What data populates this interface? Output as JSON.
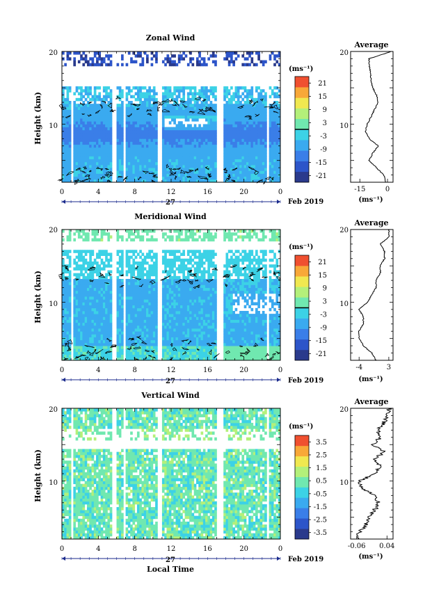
{
  "figure": {
    "x_label": "Local Time",
    "date_label": "Feb 2019",
    "day_label": "27",
    "y_label": "Height (km)",
    "avg_title": "Average",
    "colorbar_unit": "(ms⁻¹)",
    "avg_unit": "(ms⁻¹)"
  },
  "chart_data": [
    {
      "type": "heatmap",
      "title": "Zonal Wind",
      "xlabel": "",
      "ylabel": "Height (km)",
      "xlim": [
        0,
        24
      ],
      "x_ticks": [
        "0",
        "4",
        "8",
        "12",
        "16",
        "20",
        "0"
      ],
      "ylim": [
        2,
        20
      ],
      "y_ticks": [
        "10",
        "20"
      ],
      "colorbar": {
        "range": [
          -24,
          24
        ],
        "ticks": [
          "21",
          "15",
          "9",
          "3",
          "-3",
          "-9",
          "-15",
          "-21"
        ],
        "zero_line": 0
      },
      "gaps_hours": [
        [
          1.0,
          1.3
        ],
        [
          5.6,
          5.9
        ],
        [
          6.8,
          7.1
        ],
        [
          10.6,
          10.9
        ],
        [
          16.9,
          17.8
        ],
        [
          22.5,
          22.7
        ]
      ],
      "profile_height": [
        2,
        3,
        4,
        5,
        6,
        7,
        8,
        9,
        10,
        11,
        12,
        13,
        14,
        15,
        16,
        17,
        18,
        19,
        20
      ],
      "profile_values": [
        -1,
        -2,
        -6,
        -10,
        -8,
        -5,
        -10,
        -12,
        -11,
        -9,
        -7,
        -5,
        -6,
        -8,
        -9,
        -9,
        -10,
        -10,
        2
      ]
    },
    {
      "type": "heatmap",
      "title": "Meridional Wind",
      "xlabel": "",
      "ylabel": "Height (km)",
      "xlim": [
        0,
        24
      ],
      "x_ticks": [
        "0",
        "4",
        "8",
        "12",
        "16",
        "20",
        "0"
      ],
      "ylim": [
        2,
        20
      ],
      "y_ticks": [
        "10",
        "20"
      ],
      "colorbar": {
        "range": [
          -24,
          24
        ],
        "ticks": [
          "21",
          "15",
          "9",
          "3",
          "-3",
          "-9",
          "-15",
          "-21"
        ],
        "zero_line": 0
      },
      "gaps_hours": [
        [
          1.0,
          1.3
        ],
        [
          5.6,
          5.9
        ],
        [
          6.8,
          7.1
        ],
        [
          10.6,
          10.9
        ],
        [
          16.9,
          17.8
        ],
        [
          22.5,
          22.7
        ]
      ],
      "profile_height": [
        2,
        3,
        4,
        5,
        6,
        7,
        8,
        9,
        10,
        11,
        12,
        13,
        14,
        15,
        16,
        17,
        18,
        19,
        20
      ],
      "profile_values": [
        0,
        -1,
        -3,
        -4,
        -4,
        -3,
        -3,
        -4,
        -2,
        -1,
        0,
        0,
        1,
        1,
        2,
        2,
        1,
        3,
        3
      ]
    },
    {
      "type": "heatmap",
      "title": "Vertical Wind",
      "xlabel": "Local Time",
      "ylabel": "Height (km)",
      "xlim": [
        0,
        24
      ],
      "x_ticks": [
        "0",
        "4",
        "8",
        "12",
        "16",
        "20",
        "0"
      ],
      "ylim": [
        2,
        20
      ],
      "y_ticks": [
        "10",
        "20"
      ],
      "colorbar": {
        "range": [
          -4,
          4
        ],
        "ticks": [
          "3.5",
          "2.5",
          "1.5",
          "0.5",
          "-0.5",
          "-1.5",
          "-2.5",
          "-3.5"
        ]
      },
      "gaps_hours": [
        [
          1.0,
          1.3
        ],
        [
          5.6,
          5.9
        ],
        [
          6.8,
          7.1
        ],
        [
          10.6,
          10.9
        ],
        [
          16.9,
          17.8
        ],
        [
          22.5,
          22.7
        ]
      ],
      "profile_height": [
        2,
        3,
        4,
        5,
        6,
        7,
        8,
        9,
        10,
        11,
        12,
        13,
        14,
        15,
        16,
        17,
        18,
        19,
        20
      ],
      "profile_values": [
        -0.06,
        -0.05,
        -0.03,
        -0.02,
        0.0,
        0.01,
        0.0,
        -0.04,
        -0.05,
        0.0,
        0.02,
        0.0,
        0.03,
        -0.01,
        0.02,
        0.01,
        0.03,
        0.04,
        0.05
      ]
    }
  ],
  "averages": [
    {
      "x_ticks": [
        "-15",
        "0"
      ],
      "xlim": [
        -20,
        3
      ]
    },
    {
      "x_ticks": [
        "-4",
        "3"
      ],
      "xlim": [
        -6,
        4
      ]
    },
    {
      "x_ticks": [
        "-0.06",
        "0.04"
      ],
      "xlim": [
        -0.08,
        0.06
      ]
    }
  ],
  "colors": {
    "colormap": [
      "#2a3a8c",
      "#2d55c9",
      "#3a7ee8",
      "#3aaaf0",
      "#3cd2e6",
      "#70e8b0",
      "#b4f07a",
      "#f0e850",
      "#f8a838",
      "#f05030"
    ],
    "contour": "#000000",
    "background": "#ffffff"
  }
}
